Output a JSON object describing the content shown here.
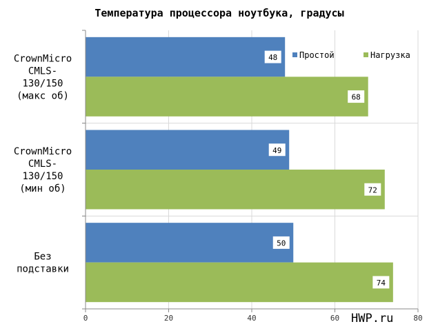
{
  "chart_data": {
    "type": "bar",
    "orientation": "horizontal",
    "title": "Температура процессора ноутбука, градусы",
    "categories": [
      [
        "CrownMicro",
        "CMLS-",
        "130/150",
        "(макс об)"
      ],
      [
        "CrownMicro",
        "CMLS-",
        "130/150",
        "(мин об)"
      ],
      [
        "Без",
        "подставки"
      ]
    ],
    "series": [
      {
        "name": "Простой",
        "color": "#4f81bd",
        "values": [
          48,
          49,
          50
        ]
      },
      {
        "name": "Нагрузка",
        "color": "#9bbb59",
        "values": [
          68,
          72,
          74
        ]
      }
    ],
    "xlim": [
      0,
      80
    ],
    "xticks": [
      0,
      20,
      40,
      60,
      80
    ],
    "grid": true,
    "legend_position": "top-right",
    "watermark": "HWP.ru"
  }
}
